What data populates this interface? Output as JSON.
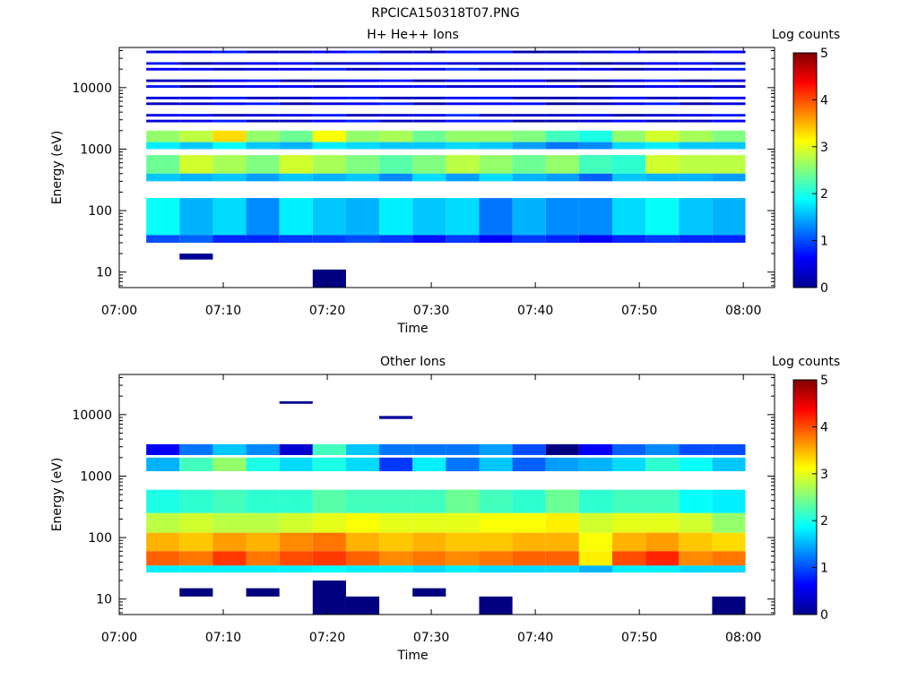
{
  "figure_title": "RPCICA150318T07.PNG",
  "chart_data": [
    {
      "type": "heatmap",
      "title": "H+ He++ Ions",
      "xlabel": "Time",
      "ylabel": "Energy (eV)",
      "yscale": "log",
      "ylim": [
        5.6,
        45000
      ],
      "xlim": [
        "07:00",
        "08:03"
      ],
      "x_ticks": [
        "07:00",
        "07:10",
        "07:20",
        "07:30",
        "07:40",
        "07:50",
        "08:00"
      ],
      "y_ticks": [
        "10",
        "100",
        "1000",
        "10000"
      ],
      "colorbar_label": "Log counts",
      "colorbar_range": [
        0,
        5
      ],
      "colorbar_ticks": [
        "0",
        "1",
        "2",
        "3",
        "4",
        "5"
      ],
      "time_bins_start": [
        "07:02.6",
        "07:05.8",
        "07:09.0",
        "07:12.2",
        "07:15.4",
        "07:18.6",
        "07:21.8",
        "07:25.0",
        "07:28.2",
        "07:31.4",
        "07:34.6",
        "07:37.8",
        "07:41.0",
        "07:44.2",
        "07:47.4",
        "07:50.6",
        "07:53.8",
        "07:57.0"
      ],
      "energy_bands": [
        {
          "e_min": 1300,
          "e_max": 2000,
          "values": [
            2.6,
            2.8,
            3.3,
            2.6,
            2.4,
            3.1,
            2.6,
            2.7,
            2.4,
            2.6,
            2.6,
            2.5,
            2.2,
            2.0,
            2.6,
            2.9,
            2.7,
            2.5
          ]
        },
        {
          "e_min": 1000,
          "e_max": 1300,
          "values": [
            1.8,
            1.6,
            1.9,
            1.6,
            1.5,
            1.8,
            1.7,
            1.6,
            1.6,
            1.7,
            1.6,
            1.4,
            1.2,
            1.3,
            1.7,
            1.8,
            1.6,
            1.6
          ]
        },
        {
          "e_min": 400,
          "e_max": 800,
          "values": [
            2.4,
            2.9,
            2.7,
            2.5,
            2.9,
            2.7,
            2.5,
            2.3,
            2.5,
            2.8,
            2.6,
            2.4,
            2.6,
            2.2,
            2.1,
            2.9,
            2.8,
            2.8
          ]
        },
        {
          "e_min": 300,
          "e_max": 400,
          "values": [
            1.6,
            1.5,
            1.6,
            1.4,
            1.6,
            1.5,
            1.6,
            1.3,
            1.7,
            1.4,
            1.7,
            1.5,
            1.4,
            1.1,
            1.6,
            1.5,
            1.5,
            1.4
          ]
        },
        {
          "e_min": 40,
          "e_max": 160,
          "values": [
            1.9,
            1.5,
            1.7,
            1.3,
            1.8,
            1.6,
            1.5,
            1.8,
            1.6,
            1.7,
            1.2,
            1.5,
            1.3,
            1.3,
            1.7,
            1.9,
            1.6,
            1.5
          ]
        },
        {
          "e_min": 30,
          "e_max": 40,
          "values": [
            1.0,
            1.1,
            0.8,
            0.8,
            0.9,
            0.9,
            1.0,
            0.9,
            0.7,
            0.9,
            0.6,
            0.9,
            0.8,
            0.6,
            0.8,
            0.9,
            0.8,
            0.8
          ]
        },
        {
          "e_min": 2200,
          "e_max": 45000,
          "values": [
            0.3,
            0.2,
            0.3,
            0.3,
            0.2,
            0.3,
            0.3,
            0.3,
            0.2,
            0.4,
            0.3,
            0.2,
            0.1,
            0.1,
            0.2,
            0.3,
            0.2,
            0.3
          ]
        }
      ],
      "sparse_points": [
        {
          "time_bin": 1,
          "e_min": 16,
          "e_max": 20,
          "value": 0.1
        },
        {
          "time_bin": 5,
          "e_min": 5.6,
          "e_max": 11,
          "value": 0.0
        }
      ]
    },
    {
      "type": "heatmap",
      "title": "Other Ions",
      "xlabel": "Time",
      "ylabel": "Energy (eV)",
      "yscale": "log",
      "ylim": [
        5.6,
        45000
      ],
      "xlim": [
        "07:00",
        "08:03"
      ],
      "x_ticks": [
        "07:00",
        "07:10",
        "07:20",
        "07:30",
        "07:40",
        "07:50",
        "08:00"
      ],
      "y_ticks": [
        "10",
        "100",
        "1000",
        "10000"
      ],
      "colorbar_label": "Log counts",
      "colorbar_range": [
        0,
        5
      ],
      "colorbar_ticks": [
        "0",
        "1",
        "2",
        "3",
        "4",
        "5"
      ],
      "time_bins_start": [
        "07:02.6",
        "07:05.8",
        "07:09.0",
        "07:12.2",
        "07:15.4",
        "07:18.6",
        "07:21.8",
        "07:25.0",
        "07:28.2",
        "07:31.4",
        "07:34.6",
        "07:37.8",
        "07:41.0",
        "07:44.2",
        "07:47.4",
        "07:50.6",
        "07:53.8",
        "07:57.0"
      ],
      "energy_bands": [
        {
          "e_min": 2200,
          "e_max": 3300,
          "values": [
            0.6,
            1.2,
            1.6,
            1.3,
            0.4,
            2.2,
            1.6,
            1.2,
            1.2,
            1.2,
            1.4,
            1.0,
            0.0,
            0.6,
            1.1,
            1.3,
            1.0,
            1.0
          ]
        },
        {
          "e_min": 1200,
          "e_max": 2000,
          "values": [
            1.5,
            2.2,
            2.6,
            2.0,
            1.7,
            2.0,
            1.7,
            0.9,
            1.8,
            1.2,
            1.6,
            1.1,
            1.4,
            1.5,
            1.7,
            2.1,
            1.9,
            1.6
          ]
        },
        {
          "e_min": 250,
          "e_max": 600,
          "values": [
            2.0,
            2.1,
            2.2,
            2.1,
            2.1,
            2.3,
            2.2,
            2.2,
            2.2,
            2.4,
            2.2,
            2.1,
            2.4,
            2.1,
            2.2,
            2.2,
            1.9,
            1.8
          ]
        },
        {
          "e_min": 120,
          "e_max": 250,
          "values": [
            2.8,
            2.9,
            2.8,
            2.8,
            2.9,
            3.0,
            3.1,
            3.0,
            3.0,
            3.0,
            3.1,
            3.1,
            3.2,
            2.9,
            3.0,
            3.0,
            2.9,
            2.6
          ]
        },
        {
          "e_min": 60,
          "e_max": 120,
          "values": [
            3.5,
            3.4,
            3.6,
            3.5,
            3.7,
            3.8,
            3.5,
            3.4,
            3.5,
            3.4,
            3.4,
            3.5,
            3.5,
            3.1,
            3.5,
            3.6,
            3.4,
            3.3
          ]
        },
        {
          "e_min": 35,
          "e_max": 60,
          "values": [
            3.9,
            3.8,
            4.1,
            3.8,
            4.0,
            4.1,
            3.9,
            3.7,
            3.8,
            3.7,
            3.8,
            3.9,
            3.9,
            3.2,
            4.0,
            4.2,
            3.7,
            3.8
          ]
        },
        {
          "e_min": 27,
          "e_max": 35,
          "values": [
            1.8,
            1.8,
            1.8,
            1.8,
            1.8,
            1.9,
            1.8,
            1.8,
            1.7,
            1.8,
            1.7,
            1.7,
            1.7,
            1.5,
            1.8,
            1.8,
            1.7,
            1.7
          ]
        }
      ],
      "sparse_points": [
        {
          "time_bin": 4,
          "e_min": 15000,
          "e_max": 16500,
          "value": 0.1
        },
        {
          "time_bin": 7,
          "e_min": 8500,
          "e_max": 9500,
          "value": 0.1
        },
        {
          "time_bin": 5,
          "e_min": 5.6,
          "e_max": 20,
          "value": 0.0
        },
        {
          "time_bin": 6,
          "e_min": 5.6,
          "e_max": 11,
          "value": 0.0
        },
        {
          "time_bin": 10,
          "e_min": 5.6,
          "e_max": 11,
          "value": 0.0
        },
        {
          "time_bin": 17,
          "e_min": 5.6,
          "e_max": 11,
          "value": 0.0
        },
        {
          "time_bin": 1,
          "e_min": 11,
          "e_max": 15,
          "value": 0.0
        },
        {
          "time_bin": 3,
          "e_min": 11,
          "e_max": 15,
          "value": 0.0
        },
        {
          "time_bin": 8,
          "e_min": 11,
          "e_max": 15,
          "value": 0.0
        }
      ]
    }
  ]
}
